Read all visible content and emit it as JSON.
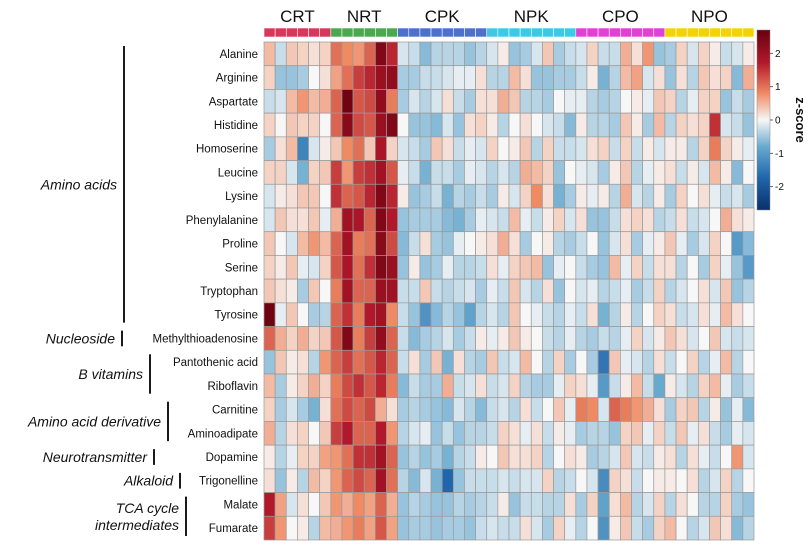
{
  "chart_data": {
    "type": "heatmap",
    "title": "",
    "colorbar": {
      "label": "z-score",
      "ticks": [
        2,
        1,
        0,
        -1,
        -2
      ],
      "tick_labels": [
        "2",
        "1",
        "0",
        "-1",
        "-2"
      ],
      "range": [
        -2.7,
        2.7
      ],
      "colors": {
        "low": "#08306b",
        "mid": "#f7f7f7",
        "high": "#67000d"
      }
    },
    "groups": [
      {
        "name": "CRT",
        "color": "#d6375a",
        "n": 6
      },
      {
        "name": "NRT",
        "color": "#4aa84f",
        "n": 6
      },
      {
        "name": "CPK",
        "color": "#4c6fd0",
        "n": 8
      },
      {
        "name": "NPK",
        "color": "#3ec8e8",
        "n": 8
      },
      {
        "name": "CPO",
        "color": "#e040d8",
        "n": 8
      },
      {
        "name": "NPO",
        "color": "#f3d400",
        "n": 8
      }
    ],
    "rows": [
      "Alanine",
      "Arginine",
      "Aspartate",
      "Histidine",
      "Homoserine",
      "Leucine",
      "Lysine",
      "Phenylalanine",
      "Proline",
      "Serine",
      "Tryptophan",
      "Tyrosine",
      "Methylthioadenosine",
      "Pantothenic acid",
      "Riboflavin",
      "Carnitine",
      "Aminoadipate",
      "Dopamine",
      "Trigonelline",
      "Malate",
      "Fumarate"
    ],
    "categories": [
      {
        "name": "Amino acids",
        "lines": [
          "Amino acids"
        ],
        "start": 0,
        "end": 11
      },
      {
        "name": "Nucleoside",
        "lines": [
          "Nucleoside"
        ],
        "start": 12,
        "end": 12
      },
      {
        "name": "B vitamins",
        "lines": [
          "B vitamins"
        ],
        "start": 13,
        "end": 14
      },
      {
        "name": "Amino acid derivative",
        "lines": [
          "Amino acid derivative"
        ],
        "start": 15,
        "end": 16
      },
      {
        "name": "Neurotransmitter",
        "lines": [
          "Neurotransmitter"
        ],
        "start": 17,
        "end": 17
      },
      {
        "name": "Alkaloid",
        "lines": [
          "Alkaloid"
        ],
        "start": 18,
        "end": 18
      },
      {
        "name": "TCA cycle intermediates",
        "lines": [
          "TCA cycle",
          "intermediates"
        ],
        "start": 19,
        "end": 20
      }
    ],
    "values": [
      [
        0.5,
        -0.3,
        0.4,
        0.3,
        0.2,
        0.3,
        1.1,
        0.9,
        0.8,
        1.2,
        2.4,
        1.7,
        -0.2,
        -0.3,
        -0.7,
        -0.4,
        -0.4,
        -0.4,
        -0.6,
        -0.4,
        -0.2,
        0.1,
        -0.6,
        -0.5,
        -0.2,
        0.4,
        -0.5,
        -0.3,
        -0.2,
        0.3,
        -0.3,
        -0.3,
        0.6,
        0.2,
        0.8,
        -0.6,
        -0.5,
        0.3,
        -0.2,
        0.3,
        0.1,
        -0.3,
        -0.2,
        0.1
      ],
      [
        0.3,
        -0.6,
        -0.6,
        -0.5,
        0.0,
        0.2,
        0.7,
        1.1,
        1.5,
        1.7,
        2.1,
        2.2,
        -0.5,
        -0.5,
        -0.3,
        -0.3,
        -0.2,
        -0.1,
        -0.1,
        0.2,
        -0.4,
        -0.4,
        0.5,
        0.2,
        -0.6,
        -0.6,
        -0.5,
        -0.5,
        -0.3,
        0.1,
        -0.8,
        -0.4,
        0.5,
        0.7,
        -0.2,
        0.2,
        -0.6,
        0.2,
        -0.4,
        0.4,
        0.2,
        0.3,
        -0.7,
        0.6
      ],
      [
        -0.3,
        -0.2,
        0.5,
        0.8,
        0.5,
        0.6,
        1.2,
        2.6,
        1.3,
        1.4,
        2.2,
        1.0,
        -0.5,
        -0.2,
        -0.4,
        -0.2,
        0.2,
        -0.3,
        -0.5,
        0.2,
        0.2,
        0.6,
        0.4,
        -0.4,
        -0.4,
        -0.5,
        0.0,
        -0.1,
        -0.1,
        -0.4,
        -0.5,
        -0.4,
        0.0,
        0.1,
        -0.1,
        0.4,
        0.3,
        -0.4,
        -0.1,
        0.3,
        0.3,
        -0.6,
        -0.3,
        -0.5
      ],
      [
        0.3,
        0.0,
        0.4,
        0.3,
        0.3,
        0.0,
        1.2,
        2.3,
        1.4,
        1.3,
        2.1,
        2.4,
        0.0,
        -0.6,
        -0.6,
        -0.7,
        -0.2,
        -0.6,
        0.2,
        0.3,
        0.1,
        -0.4,
        0.0,
        0.2,
        0.0,
        -0.2,
        -0.3,
        -0.7,
        0.1,
        -0.4,
        -0.4,
        -0.5,
        0.4,
        0.1,
        -0.5,
        0.5,
        -0.4,
        0.3,
        0.2,
        0.3,
        1.6,
        -0.2,
        -0.3,
        -0.6
      ],
      [
        -0.5,
        0.2,
        0.5,
        -1.4,
        -0.2,
        0.1,
        0.4,
        0.9,
        1.1,
        0.4,
        1.9,
        0.3,
        -0.2,
        -0.3,
        -0.5,
        0.4,
        0.2,
        -0.3,
        -0.1,
        -0.2,
        0.3,
        0.0,
        0.1,
        0.4,
        -0.4,
        0.3,
        -0.3,
        -0.3,
        -0.2,
        0.2,
        0.3,
        -0.3,
        0.3,
        -0.3,
        0.1,
        -0.2,
        0.1,
        0.1,
        -0.4,
        0.3,
        1.0,
        0.3,
        0.1,
        -0.1
      ],
      [
        0.3,
        0.3,
        -0.2,
        -0.8,
        0.3,
        0.4,
        1.5,
        0.8,
        1.5,
        1.6,
        2.0,
        1.3,
        -0.1,
        -0.3,
        -0.8,
        -0.3,
        -0.3,
        -0.5,
        -0.1,
        -0.2,
        -0.4,
        -0.2,
        -0.4,
        0.6,
        0.5,
        0.3,
        -0.6,
        0.0,
        -0.1,
        -0.2,
        -0.5,
        0.1,
        0.4,
        -0.4,
        -0.1,
        0.1,
        0.2,
        -0.3,
        0.1,
        -0.2,
        0.5,
        0.1,
        -0.7,
        0.0
      ],
      [
        -0.2,
        0.1,
        0.2,
        0.4,
        0.4,
        0.0,
        1.6,
        1.2,
        1.3,
        1.7,
        2.4,
        1.7,
        0.1,
        -0.6,
        -0.5,
        -0.3,
        -0.8,
        -0.4,
        -0.5,
        -0.3,
        -0.5,
        0.1,
        -0.2,
        0.3,
        0.9,
        0.2,
        -0.8,
        -0.5,
        0.1,
        -0.1,
        0.1,
        -0.4,
        0.6,
        -0.2,
        -0.4,
        0.1,
        -0.5,
        0.3,
        0.0,
        0.2,
        -0.1,
        -0.3,
        -0.2,
        -0.5
      ],
      [
        -0.2,
        0.4,
        0.2,
        0.2,
        0.4,
        -0.1,
        0.6,
        2.0,
        1.9,
        1.2,
        2.4,
        1.8,
        -0.6,
        -0.5,
        -0.5,
        -0.5,
        -0.7,
        -0.8,
        -0.5,
        -0.1,
        -0.2,
        -0.3,
        0.5,
        -0.1,
        -0.3,
        0.1,
        0.3,
        -0.2,
        0.2,
        -0.6,
        -0.6,
        -0.3,
        0.2,
        0.3,
        0.2,
        -0.4,
        -0.3,
        0.2,
        -0.3,
        -0.2,
        0.0,
        0.6,
        0.2,
        0.1
      ],
      [
        0.4,
        0.0,
        -0.2,
        0.5,
        0.8,
        0.5,
        1.2,
        2.0,
        1.0,
        1.1,
        2.3,
        1.4,
        -0.7,
        -0.3,
        0.2,
        -0.5,
        -0.6,
        -0.1,
        0.0,
        0.1,
        0.2,
        0.6,
        0.2,
        -0.5,
        0.0,
        0.1,
        -0.4,
        -0.5,
        -0.3,
        0.0,
        -0.6,
        -0.2,
        0.2,
        -0.5,
        -0.1,
        0.1,
        0.4,
        -0.1,
        -0.5,
        -0.2,
        0.3,
        0.0,
        -1.1,
        -0.7
      ],
      [
        0.3,
        0.1,
        0.4,
        -0.1,
        -0.2,
        0.3,
        1.3,
        1.9,
        1.1,
        1.6,
        2.4,
        2.1,
        -0.6,
        0.1,
        -0.6,
        -0.5,
        -0.1,
        -0.4,
        -0.4,
        -0.3,
        0.2,
        -0.1,
        0.3,
        0.4,
        0.5,
        -0.6,
        -0.1,
        0.0,
        -0.3,
        -0.5,
        -0.6,
        0.5,
        -0.1,
        0.3,
        -0.3,
        0.2,
        0.2,
        -0.4,
        0.0,
        -0.5,
        0.3,
        -0.1,
        -0.6,
        -1.1
      ],
      [
        0.4,
        0.2,
        0.1,
        -0.5,
        0.4,
        0.0,
        1.0,
        2.0,
        1.2,
        1.2,
        2.1,
        2.0,
        -0.3,
        -0.3,
        0.4,
        -0.3,
        -0.4,
        -0.3,
        -0.2,
        -0.5,
        -0.1,
        -0.3,
        0.4,
        -0.2,
        -0.4,
        0.2,
        -0.6,
        0.0,
        -0.2,
        -0.1,
        -0.4,
        -0.3,
        -0.1,
        -0.5,
        -0.3,
        0.3,
        -0.4,
        -0.2,
        0.0,
        0.2,
        -0.2,
        0.4,
        -0.6,
        -0.4
      ],
      [
        2.6,
        -0.1,
        0.4,
        0.0,
        -0.5,
        -0.4,
        1.2,
        1.6,
        1.0,
        1.8,
        2.0,
        0.9,
        -0.3,
        -0.6,
        -1.2,
        -0.7,
        -0.4,
        -0.6,
        -1.0,
        -0.4,
        -0.2,
        -0.4,
        0.4,
        0.0,
        -0.1,
        -0.3,
        -0.4,
        -0.1,
        -0.3,
        0.2,
        -0.8,
        -0.4,
        0.1,
        -0.4,
        0.0,
        0.3,
        0.2,
        -0.3,
        -0.2,
        0.2,
        -0.1,
        0.5,
        0.2,
        0.0
      ],
      [
        1.2,
        0.6,
        0.3,
        0.6,
        0.3,
        0.4,
        1.3,
        2.4,
        1.0,
        1.5,
        2.2,
        1.2,
        -0.3,
        -0.7,
        -0.5,
        -0.4,
        -0.2,
        -0.5,
        -0.3,
        0.1,
        -0.1,
        0.1,
        0.4,
        0.1,
        0.0,
        -0.3,
        -0.4,
        -0.1,
        -0.4,
        -0.5,
        -0.3,
        -0.4,
        -0.1,
        0.3,
        -0.2,
        0.1,
        0.4,
        0.2,
        -0.2,
        0.0,
        0.4,
        -0.2,
        -0.3,
        -0.2
      ],
      [
        -0.6,
        0.4,
        0.1,
        0.2,
        -0.4,
        0.8,
        1.2,
        1.5,
        1.1,
        1.3,
        1.7,
        1.2,
        -0.3,
        0.2,
        -0.5,
        0.4,
        -0.8,
        0.2,
        -0.4,
        -0.5,
        0.4,
        -0.3,
        -0.2,
        0.5,
        0.0,
        -0.4,
        0.3,
        -0.5,
        0.0,
        -0.5,
        -1.6,
        0.4,
        -0.1,
        -0.2,
        -0.4,
        0.2,
        -0.3,
        0.0,
        0.3,
        -0.4,
        -0.1,
        0.5,
        -0.4,
        0.0
      ],
      [
        0.5,
        -0.5,
        0.1,
        0.3,
        0.6,
        0.3,
        1.0,
        1.4,
        1.6,
        1.3,
        1.7,
        1.0,
        -0.7,
        -0.3,
        -0.5,
        -0.5,
        0.6,
        -0.3,
        -0.2,
        0.2,
        -0.3,
        -0.2,
        0.3,
        -0.4,
        -0.5,
        -0.5,
        -0.1,
        0.3,
        0.2,
        -0.1,
        -1.1,
        -0.3,
        0.1,
        0.5,
        -0.3,
        -0.9,
        0.1,
        -0.2,
        -0.4,
        0.3,
        0.5,
        -0.1,
        -0.5,
        -0.3
      ],
      [
        0.3,
        -0.5,
        -0.2,
        -0.5,
        -0.8,
        0.2,
        1.1,
        1.4,
        1.2,
        1.4,
        0.6,
        0.2,
        -0.5,
        -0.4,
        -0.5,
        -0.6,
        -0.7,
        -0.2,
        -0.4,
        -0.7,
        -0.3,
        -0.2,
        -0.4,
        0.2,
        -0.3,
        0.0,
        0.4,
        -0.1,
        1.0,
        0.9,
        -0.2,
        1.2,
        1.0,
        0.8,
        0.6,
        0.2,
        -0.5,
        0.3,
        0.4,
        -0.4,
        0.1,
        -0.6,
        -0.1,
        -0.7
      ],
      [
        0.6,
        -0.4,
        0.2,
        0.3,
        0.0,
        0.4,
        1.5,
        1.8,
        1.2,
        1.2,
        1.8,
        0.8,
        -0.4,
        -0.2,
        -0.1,
        -0.6,
        -0.3,
        -0.6,
        -0.4,
        -0.4,
        -0.3,
        0.3,
        0.2,
        -0.1,
        0.2,
        -0.3,
        0.1,
        -0.1,
        -0.5,
        -0.4,
        -0.4,
        -0.6,
        0.3,
        0.4,
        -0.1,
        0.3,
        -0.3,
        0.4,
        -0.1,
        0.2,
        -0.3,
        -0.5,
        -0.1,
        -0.2
      ],
      [
        0.1,
        -0.4,
        -0.1,
        0.3,
        0.3,
        0.7,
        0.8,
        1.1,
        1.6,
        1.6,
        2.0,
        1.2,
        -0.6,
        -0.4,
        -0.6,
        -0.5,
        -0.8,
        -0.4,
        -0.3,
        0.1,
        0.0,
        0.4,
        0.2,
        0.2,
        0.3,
        -0.4,
        0.0,
        0.2,
        0.1,
        -0.5,
        -0.4,
        -0.2,
        0.4,
        -0.2,
        -0.3,
        0.1,
        0.2,
        -0.4,
        0.2,
        -0.1,
        -0.3,
        0.0,
        0.8,
        -0.2
      ],
      [
        0.2,
        -0.6,
        0.1,
        -0.4,
        0.5,
        0.3,
        0.8,
        1.2,
        1.4,
        1.2,
        2.0,
        1.1,
        -0.4,
        -0.7,
        -0.2,
        -0.8,
        -1.8,
        -0.6,
        -0.3,
        -0.3,
        -0.3,
        -0.2,
        -0.3,
        -0.2,
        -0.2,
        0.3,
        -0.4,
        -0.3,
        0.0,
        -0.2,
        -1.3,
        0.3,
        0.2,
        -0.3,
        0.0,
        0.1,
        0.1,
        0.0,
        0.2,
        -0.4,
        -0.2,
        0.3,
        -0.4,
        0.0
      ],
      [
        1.8,
        0.7,
        -0.2,
        0.2,
        0.0,
        0.4,
        0.8,
        0.6,
        0.9,
        0.7,
        1.2,
        0.6,
        -0.6,
        -0.4,
        -0.5,
        -0.6,
        -0.6,
        -0.4,
        -0.5,
        -0.4,
        -0.3,
        0.1,
        -0.6,
        -0.3,
        -0.3,
        -0.4,
        -0.4,
        0.2,
        -0.5,
        0.3,
        -1.0,
        0.2,
        0.5,
        -0.4,
        -0.2,
        0.3,
        -0.4,
        0.2,
        0.0,
        -0.4,
        -0.4,
        0.3,
        -0.5,
        -0.6
      ],
      [
        1.5,
        0.8,
        0.0,
        0.1,
        -0.4,
        0.5,
        0.6,
        0.8,
        1.0,
        0.7,
        1.3,
        0.7,
        -0.6,
        -0.5,
        -0.5,
        -0.6,
        -0.5,
        -0.5,
        -0.6,
        -0.3,
        -0.2,
        -0.3,
        -0.3,
        0.2,
        -0.2,
        -0.5,
        0.3,
        -0.1,
        -0.4,
        0.0,
        -1.2,
        0.1,
        0.4,
        -0.3,
        -0.5,
        0.3,
        0.5,
        0.0,
        -0.4,
        -0.2,
        0.4,
        0.2,
        -0.7,
        -0.4
      ]
    ]
  }
}
